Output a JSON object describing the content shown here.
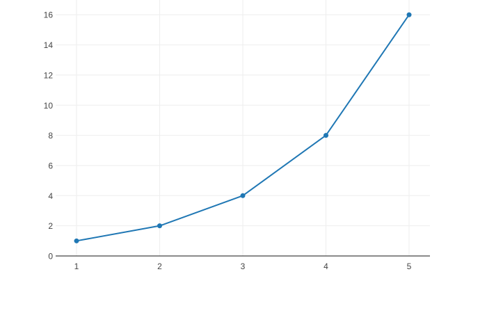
{
  "chart_data": {
    "type": "line",
    "mode": "lines+markers",
    "title": "",
    "xlabel": "",
    "ylabel": "",
    "x": [
      1,
      2,
      3,
      4,
      5
    ],
    "y": [
      1,
      2,
      4,
      8,
      16
    ],
    "x_tick_labels": [
      "1",
      "2",
      "3",
      "4",
      "5"
    ],
    "x_tick_values": [
      1,
      2,
      3,
      4,
      5
    ],
    "y_tick_labels": [
      "0",
      "2",
      "4",
      "6",
      "8",
      "10",
      "12",
      "14",
      "16"
    ],
    "y_tick_values": [
      0,
      2,
      4,
      6,
      8,
      10,
      12,
      14,
      16
    ],
    "xlim": [
      0.749,
      5.251
    ],
    "ylim": [
      0,
      16.98
    ],
    "grid": true,
    "legend_position": "none",
    "colors": {
      "line": "#1f77b4",
      "marker": "#1f77b4",
      "grid": "#eeeeee",
      "axis_line": "#444444",
      "tick_label": "#444444",
      "background": "#ffffff"
    },
    "line_width": 2,
    "marker_diameter": 7
  }
}
